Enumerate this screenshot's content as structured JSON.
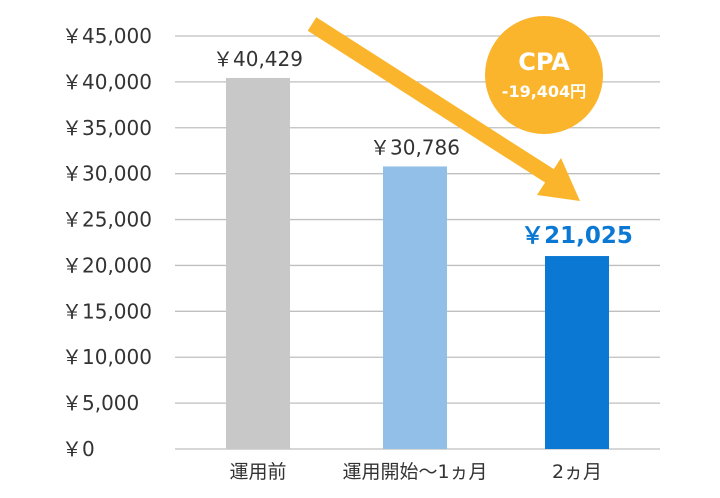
{
  "chart_data": {
    "type": "bar",
    "categories": [
      "運用前",
      "運用開始〜1ヵ月",
      "2ヵ月"
    ],
    "values": [
      40429,
      30786,
      21025
    ],
    "value_labels": [
      "￥40,429",
      "￥30,786",
      "￥21,025"
    ],
    "y_tick_labels": [
      "￥0",
      "￥5,000",
      "￥10,000",
      "￥15,000",
      "￥20,000",
      "￥25,000",
      "￥30,000",
      "￥35,000",
      "￥40,000",
      "￥45,000"
    ],
    "ylim": [
      0,
      45000
    ],
    "grid": true,
    "title": "",
    "xlabel": "",
    "ylabel": "",
    "bar_colors": [
      "#c8c8c8",
      "#92bfe8",
      "#0b79d4"
    ],
    "highlight_label_color": "#0b79d4",
    "trend_arrow_color": "#fbb52c",
    "badge": {
      "title": "CPA",
      "value": "-19,404円",
      "color": "#fbb52c"
    }
  }
}
